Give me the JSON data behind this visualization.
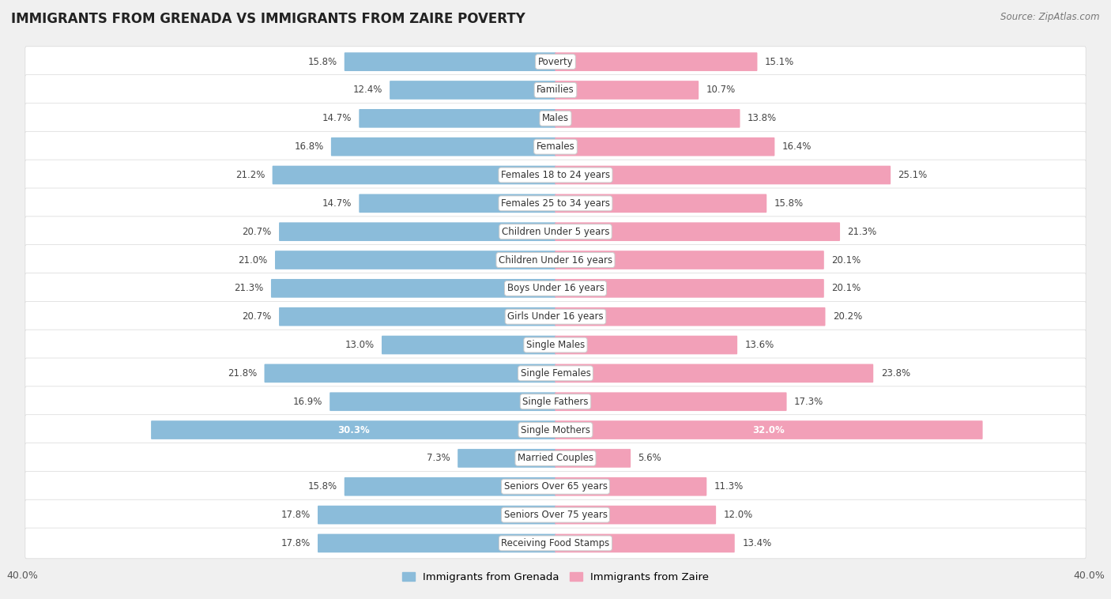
{
  "title": "IMMIGRANTS FROM GRENADA VS IMMIGRANTS FROM ZAIRE POVERTY",
  "source": "Source: ZipAtlas.com",
  "categories": [
    "Poverty",
    "Families",
    "Males",
    "Females",
    "Females 18 to 24 years",
    "Females 25 to 34 years",
    "Children Under 5 years",
    "Children Under 16 years",
    "Boys Under 16 years",
    "Girls Under 16 years",
    "Single Males",
    "Single Females",
    "Single Fathers",
    "Single Mothers",
    "Married Couples",
    "Seniors Over 65 years",
    "Seniors Over 75 years",
    "Receiving Food Stamps"
  ],
  "grenada_values": [
    15.8,
    12.4,
    14.7,
    16.8,
    21.2,
    14.7,
    20.7,
    21.0,
    21.3,
    20.7,
    13.0,
    21.8,
    16.9,
    30.3,
    7.3,
    15.8,
    17.8,
    17.8
  ],
  "zaire_values": [
    15.1,
    10.7,
    13.8,
    16.4,
    25.1,
    15.8,
    21.3,
    20.1,
    20.1,
    20.2,
    13.6,
    23.8,
    17.3,
    32.0,
    5.6,
    11.3,
    12.0,
    13.4
  ],
  "grenada_color": "#8BBCDA",
  "zaire_color": "#F2A0B8",
  "background_color": "#f0f0f0",
  "row_even_color": "#fafafa",
  "row_odd_color": "#efefef",
  "axis_limit": 40.0,
  "bar_height": 0.58,
  "label_fontsize": 8.5,
  "value_fontsize": 8.5,
  "title_fontsize": 12,
  "source_fontsize": 8.5,
  "highlight_threshold": 28.0
}
